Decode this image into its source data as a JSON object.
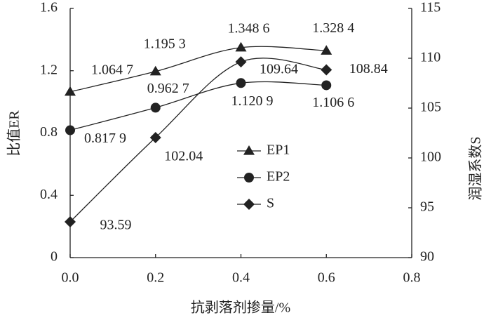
{
  "chart_data": {
    "type": "line",
    "x_label": "抗剥落剂掺量/%",
    "y_label": "比值ER",
    "y2_label": "润湿系数S",
    "x": [
      0,
      0.2,
      0.4,
      0.6
    ],
    "xlim": [
      0,
      0.8
    ],
    "xticks": [
      {
        "value": 0,
        "label": "0.0"
      },
      0.2,
      0.4,
      0.6,
      0.8
    ],
    "ylim": [
      0,
      1.6
    ],
    "yticks": [
      0,
      0.4,
      0.8,
      1.2,
      1.6
    ],
    "y2lim": [
      90,
      115
    ],
    "y2ticks": [
      90,
      95,
      100,
      105,
      110,
      115
    ],
    "series": [
      {
        "name": "EP1",
        "color": "#222222",
        "marker": "triangle",
        "values": [
          1.0647,
          1.1953,
          1.3486,
          1.3284
        ],
        "value_labels": [
          "1.064 7",
          "1.195 3",
          "1.348 6",
          "1.328 4"
        ]
      },
      {
        "name": "EP2",
        "color": "#222222",
        "marker": "circle",
        "values": [
          0.8179,
          0.9627,
          1.1209,
          1.1066
        ],
        "value_labels": [
          "0.817 9",
          "0.962 7",
          "1.120 9",
          "1.106 6"
        ]
      },
      {
        "name": "S",
        "color": "#222222",
        "marker": "diamond",
        "axis": "y2",
        "values": [
          93.59,
          102.04,
          109.64,
          108.84
        ]
      }
    ]
  }
}
